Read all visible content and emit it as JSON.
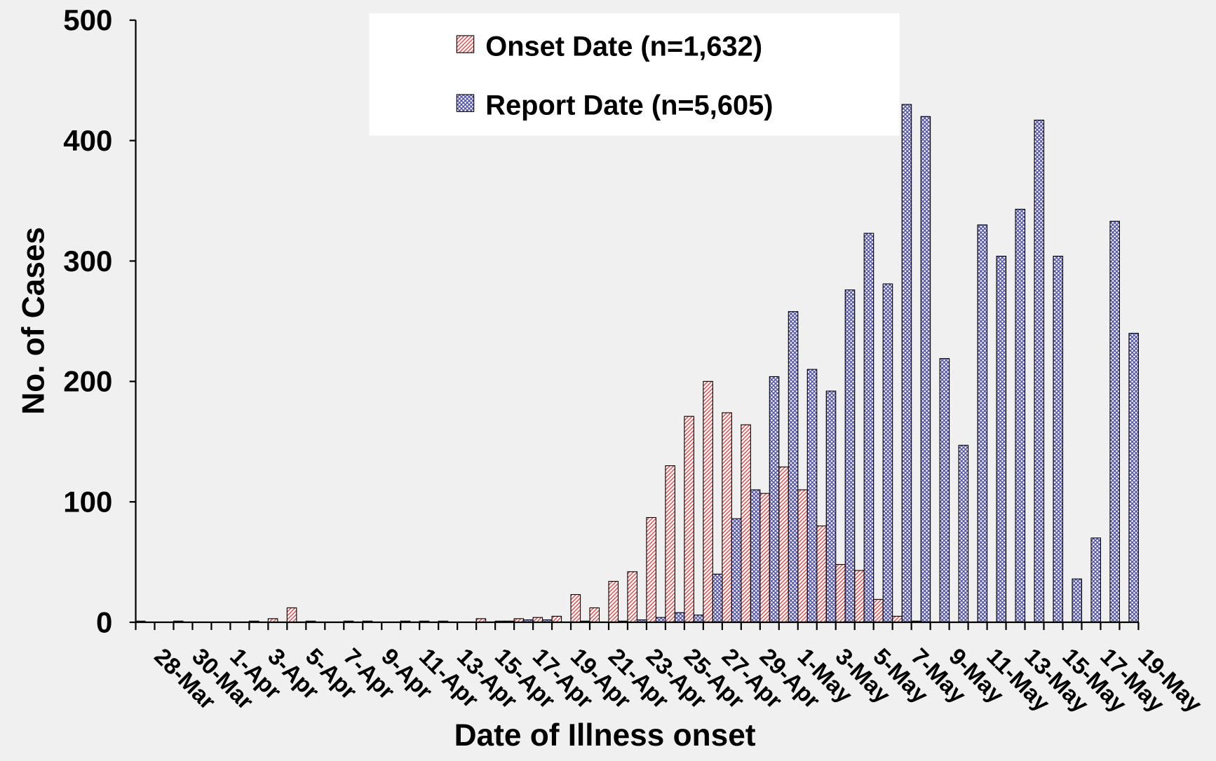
{
  "chart_data": {
    "type": "bar",
    "xlabel": "Date of Illness onset",
    "ylabel": "No. of Cases",
    "categories": [
      "28-Mar",
      null,
      "30-Mar",
      null,
      "1-Apr",
      null,
      "3-Apr",
      null,
      "5-Apr",
      null,
      "7-Apr",
      null,
      "9-Apr",
      null,
      "11-Apr",
      null,
      "13-Apr",
      null,
      "15-Apr",
      null,
      "17-Apr",
      null,
      "19-Apr",
      null,
      "21-Apr",
      null,
      "23-Apr",
      null,
      "25-Apr",
      null,
      "27-Apr",
      null,
      "29-Apr",
      null,
      "1-May",
      null,
      "3-May",
      null,
      "5-May",
      null,
      "7-May",
      null,
      "9-May",
      null,
      "11-May",
      null,
      "13-May",
      null,
      "15-May",
      null,
      "17-May",
      null,
      "19-May"
    ],
    "series": [
      {
        "name": "Onset Date (n=1,632)",
        "color": "#e04848",
        "values": [
          1,
          0,
          1,
          0,
          0,
          0,
          1,
          3,
          12,
          1,
          0,
          1,
          1,
          0,
          1,
          1,
          1,
          0,
          3,
          1,
          3,
          4,
          5,
          23,
          12,
          34,
          42,
          87,
          130,
          171,
          200,
          174,
          164,
          107,
          129,
          110,
          80,
          48,
          43,
          19,
          5,
          1,
          0,
          0,
          0,
          0,
          0,
          0,
          0,
          0,
          0,
          0,
          0
        ]
      },
      {
        "name": "Report Date (n=5,605)",
        "color": "#5050a8",
        "values": [
          0,
          0,
          0,
          0,
          0,
          0,
          0,
          0,
          0,
          0,
          0,
          0,
          0,
          0,
          0,
          0,
          0,
          0,
          0,
          1,
          2,
          2,
          0,
          1,
          0,
          1,
          2,
          4,
          8,
          6,
          40,
          86,
          110,
          204,
          258,
          210,
          192,
          276,
          323,
          281,
          430,
          420,
          219,
          147,
          330,
          304,
          343,
          417,
          304,
          36,
          70,
          333,
          240
        ]
      }
    ],
    "ylim": [
      0,
      500
    ],
    "yticks": [
      0,
      100,
      200,
      300,
      400,
      500
    ]
  }
}
